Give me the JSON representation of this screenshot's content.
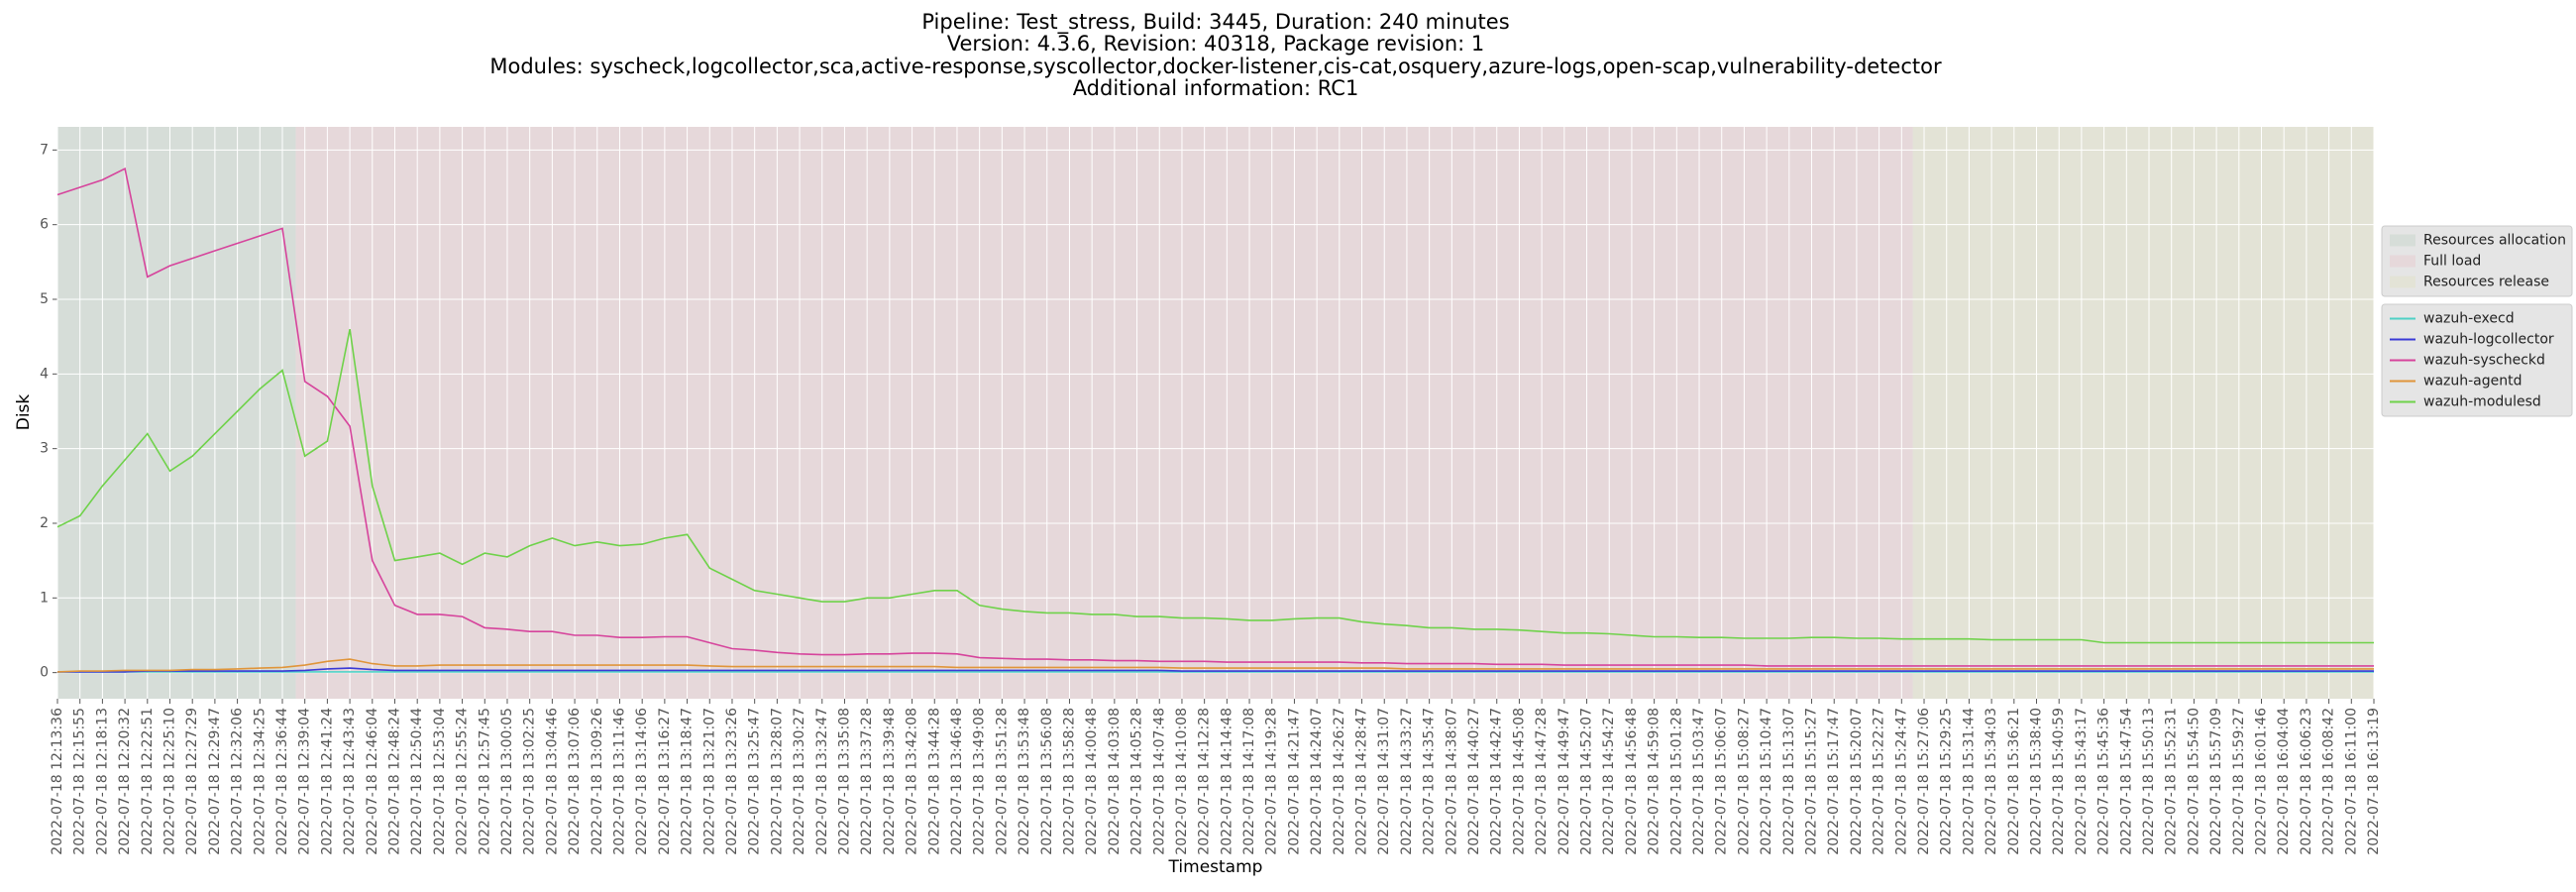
{
  "chart_data": {
    "type": "line",
    "title": [
      "Pipeline: Test_stress, Build: 3445, Duration: 240 minutes",
      "Version: 4.3.6, Revision: 40318, Package revision: 1",
      "Modules: syscheck,logcollector,sca,active-response,syscollector,docker-listener,cis-cat,osquery,azure-logs,open-scap,vulnerability-detector",
      "Additional information: RC1"
    ],
    "x_label": "Timestamp",
    "y_label": "Disk",
    "categories": [
      "2022-07-18 12:13:36",
      "2022-07-18 12:15:55",
      "2022-07-18 12:18:13",
      "2022-07-18 12:20:32",
      "2022-07-18 12:22:51",
      "2022-07-18 12:25:10",
      "2022-07-18 12:27:29",
      "2022-07-18 12:29:47",
      "2022-07-18 12:32:06",
      "2022-07-18 12:34:25",
      "2022-07-18 12:36:44",
      "2022-07-18 12:39:04",
      "2022-07-18 12:41:24",
      "2022-07-18 12:43:43",
      "2022-07-18 12:46:04",
      "2022-07-18 12:48:24",
      "2022-07-18 12:50:44",
      "2022-07-18 12:53:04",
      "2022-07-18 12:55:24",
      "2022-07-18 12:57:45",
      "2022-07-18 13:00:05",
      "2022-07-18 13:02:25",
      "2022-07-18 13:04:46",
      "2022-07-18 13:07:06",
      "2022-07-18 13:09:26",
      "2022-07-18 13:11:46",
      "2022-07-18 13:14:06",
      "2022-07-18 13:16:27",
      "2022-07-18 13:18:47",
      "2022-07-18 13:21:07",
      "2022-07-18 13:23:26",
      "2022-07-18 13:25:47",
      "2022-07-18 13:28:07",
      "2022-07-18 13:30:27",
      "2022-07-18 13:32:47",
      "2022-07-18 13:35:08",
      "2022-07-18 13:37:28",
      "2022-07-18 13:39:48",
      "2022-07-18 13:42:08",
      "2022-07-18 13:44:28",
      "2022-07-18 13:46:48",
      "2022-07-18 13:49:08",
      "2022-07-18 13:51:28",
      "2022-07-18 13:53:48",
      "2022-07-18 13:56:08",
      "2022-07-18 13:58:28",
      "2022-07-18 14:00:48",
      "2022-07-18 14:03:08",
      "2022-07-18 14:05:28",
      "2022-07-18 14:07:48",
      "2022-07-18 14:10:08",
      "2022-07-18 14:12:28",
      "2022-07-18 14:14:48",
      "2022-07-18 14:17:08",
      "2022-07-18 14:19:28",
      "2022-07-18 14:21:47",
      "2022-07-18 14:24:07",
      "2022-07-18 14:26:27",
      "2022-07-18 14:28:47",
      "2022-07-18 14:31:07",
      "2022-07-18 14:33:27",
      "2022-07-18 14:35:47",
      "2022-07-18 14:38:07",
      "2022-07-18 14:40:27",
      "2022-07-18 14:42:47",
      "2022-07-18 14:45:08",
      "2022-07-18 14:47:28",
      "2022-07-18 14:49:47",
      "2022-07-18 14:52:07",
      "2022-07-18 14:54:27",
      "2022-07-18 14:56:48",
      "2022-07-18 14:59:08",
      "2022-07-18 15:01:28",
      "2022-07-18 15:03:47",
      "2022-07-18 15:06:07",
      "2022-07-18 15:08:27",
      "2022-07-18 15:10:47",
      "2022-07-18 15:13:07",
      "2022-07-18 15:15:27",
      "2022-07-18 15:17:47",
      "2022-07-18 15:20:07",
      "2022-07-18 15:22:27",
      "2022-07-18 15:24:47",
      "2022-07-18 15:27:06",
      "2022-07-18 15:29:25",
      "2022-07-18 15:31:44",
      "2022-07-18 15:34:03",
      "2022-07-18 15:36:21",
      "2022-07-18 15:38:40",
      "2022-07-18 15:40:59",
      "2022-07-18 15:43:17",
      "2022-07-18 15:45:36",
      "2022-07-18 15:47:54",
      "2022-07-18 15:50:13",
      "2022-07-18 15:52:31",
      "2022-07-18 15:54:50",
      "2022-07-18 15:57:09",
      "2022-07-18 15:59:27",
      "2022-07-18 16:01:46",
      "2022-07-18 16:04:04",
      "2022-07-18 16:06:23",
      "2022-07-18 16:08:42",
      "2022-07-18 16:11:00",
      "2022-07-18 16:13:19"
    ],
    "phases": [
      {
        "name": "Resources allocation",
        "color": "#d6ddd8",
        "start": 0,
        "end": 10.6
      },
      {
        "name": "Full load",
        "color": "#e6d8da",
        "start": 10.6,
        "end": 82.5
      },
      {
        "name": "Resources release",
        "color": "#e3e3d6",
        "start": 82.5,
        "end": 103
      }
    ],
    "series": [
      {
        "name": "wazuh-execd",
        "color": "#4fd1c5",
        "values": [
          0.01,
          0.01,
          0.01,
          0.01,
          0.01,
          0.01,
          0.01,
          0.01,
          0.01,
          0.01,
          0.01,
          0.01,
          0.01,
          0.01,
          0.01,
          0.01,
          0.01,
          0.01,
          0.01,
          0.01,
          0.01,
          0.01,
          0.01,
          0.01,
          0.01,
          0.01,
          0.01,
          0.01,
          0.01,
          0.01,
          0.01,
          0.01,
          0.01,
          0.01,
          0.01,
          0.01,
          0.01,
          0.01,
          0.01,
          0.01,
          0.01,
          0.01,
          0.01,
          0.01,
          0.01,
          0.01,
          0.01,
          0.01,
          0.01,
          0.01,
          0.01,
          0.01,
          0.01,
          0.01,
          0.01,
          0.01,
          0.01,
          0.01,
          0.01,
          0.01,
          0.01,
          0.01,
          0.01,
          0.01,
          0.01,
          0.01,
          0.01,
          0.01,
          0.01,
          0.01,
          0.01,
          0.01,
          0.01,
          0.01,
          0.01,
          0.01,
          0.01,
          0.01,
          0.01,
          0.01,
          0.01,
          0.01,
          0.01,
          0.01,
          0.01,
          0.01,
          0.01,
          0.01,
          0.01,
          0.01,
          0.01,
          0.01,
          0.01,
          0.01,
          0.01,
          0.01,
          0.01,
          0.01,
          0.01,
          0.01,
          0.01,
          0.01,
          0.01,
          0.01
        ]
      },
      {
        "name": "wazuh-logcollector",
        "color": "#3a3ad6",
        "values": [
          0.01,
          0.01,
          0.01,
          0.01,
          0.02,
          0.02,
          0.02,
          0.02,
          0.02,
          0.02,
          0.02,
          0.03,
          0.05,
          0.06,
          0.04,
          0.03,
          0.03,
          0.03,
          0.03,
          0.03,
          0.03,
          0.03,
          0.03,
          0.03,
          0.03,
          0.03,
          0.03,
          0.03,
          0.03,
          0.03,
          0.03,
          0.03,
          0.03,
          0.03,
          0.03,
          0.03,
          0.03,
          0.03,
          0.03,
          0.03,
          0.03,
          0.03,
          0.03,
          0.03,
          0.03,
          0.03,
          0.03,
          0.03,
          0.03,
          0.03,
          0.02,
          0.02,
          0.02,
          0.02,
          0.02,
          0.02,
          0.02,
          0.02,
          0.02,
          0.02,
          0.02,
          0.02,
          0.02,
          0.02,
          0.02,
          0.02,
          0.02,
          0.02,
          0.02,
          0.02,
          0.02,
          0.02,
          0.02,
          0.02,
          0.02,
          0.02,
          0.02,
          0.02,
          0.02,
          0.02,
          0.02,
          0.02,
          0.02,
          0.02,
          0.02,
          0.02,
          0.02,
          0.02,
          0.02,
          0.02,
          0.02,
          0.02,
          0.02,
          0.02,
          0.02,
          0.02,
          0.02,
          0.02,
          0.02,
          0.02,
          0.02,
          0.02,
          0.02,
          0.02
        ]
      },
      {
        "name": "wazuh-syscheckd",
        "color": "#d6449c",
        "values": [
          6.4,
          6.5,
          6.6,
          6.75,
          5.3,
          5.45,
          5.55,
          5.65,
          5.75,
          5.85,
          5.95,
          3.9,
          3.7,
          3.3,
          1.5,
          0.9,
          0.78,
          0.78,
          0.75,
          0.6,
          0.58,
          0.55,
          0.55,
          0.5,
          0.5,
          0.47,
          0.47,
          0.48,
          0.48,
          0.4,
          0.32,
          0.3,
          0.27,
          0.25,
          0.24,
          0.24,
          0.25,
          0.25,
          0.26,
          0.26,
          0.25,
          0.2,
          0.19,
          0.18,
          0.18,
          0.17,
          0.17,
          0.16,
          0.16,
          0.15,
          0.15,
          0.15,
          0.14,
          0.14,
          0.14,
          0.14,
          0.14,
          0.14,
          0.13,
          0.13,
          0.12,
          0.12,
          0.12,
          0.12,
          0.11,
          0.11,
          0.11,
          0.1,
          0.1,
          0.1,
          0.1,
          0.1,
          0.1,
          0.1,
          0.1,
          0.1,
          0.09,
          0.09,
          0.09,
          0.09,
          0.09,
          0.09,
          0.09,
          0.09,
          0.09,
          0.09,
          0.09,
          0.09,
          0.09,
          0.09,
          0.09,
          0.09,
          0.09,
          0.09,
          0.09,
          0.09,
          0.09,
          0.09,
          0.09,
          0.09,
          0.09,
          0.09,
          0.09,
          0.09
        ]
      },
      {
        "name": "wazuh-agentd",
        "color": "#e0953a",
        "values": [
          0.01,
          0.02,
          0.02,
          0.03,
          0.03,
          0.03,
          0.04,
          0.04,
          0.05,
          0.06,
          0.07,
          0.1,
          0.15,
          0.18,
          0.12,
          0.09,
          0.09,
          0.1,
          0.1,
          0.1,
          0.1,
          0.1,
          0.1,
          0.1,
          0.1,
          0.1,
          0.1,
          0.1,
          0.1,
          0.09,
          0.08,
          0.08,
          0.08,
          0.08,
          0.08,
          0.08,
          0.08,
          0.08,
          0.08,
          0.08,
          0.07,
          0.07,
          0.07,
          0.07,
          0.07,
          0.07,
          0.07,
          0.07,
          0.07,
          0.07,
          0.06,
          0.06,
          0.06,
          0.06,
          0.06,
          0.06,
          0.06,
          0.06,
          0.06,
          0.06,
          0.05,
          0.05,
          0.05,
          0.05,
          0.05,
          0.05,
          0.05,
          0.05,
          0.05,
          0.05,
          0.05,
          0.05,
          0.05,
          0.05,
          0.05,
          0.05,
          0.05,
          0.05,
          0.05,
          0.05,
          0.05,
          0.05,
          0.05,
          0.05,
          0.05,
          0.05,
          0.05,
          0.05,
          0.05,
          0.05,
          0.05,
          0.05,
          0.05,
          0.05,
          0.05,
          0.05,
          0.05,
          0.05,
          0.05,
          0.05,
          0.05,
          0.05,
          0.05,
          0.05
        ]
      },
      {
        "name": "wazuh-modulesd",
        "color": "#6fd24a",
        "values": [
          1.95,
          2.1,
          2.5,
          2.85,
          3.2,
          2.7,
          2.9,
          3.2,
          3.5,
          3.8,
          4.05,
          2.9,
          3.1,
          4.6,
          2.5,
          1.5,
          1.55,
          1.6,
          1.45,
          1.6,
          1.55,
          1.7,
          1.8,
          1.7,
          1.75,
          1.7,
          1.72,
          1.8,
          1.85,
          1.4,
          1.25,
          1.1,
          1.05,
          1.0,
          0.95,
          0.95,
          1.0,
          1.0,
          1.05,
          1.1,
          1.1,
          0.9,
          0.85,
          0.82,
          0.8,
          0.8,
          0.78,
          0.78,
          0.75,
          0.75,
          0.73,
          0.73,
          0.72,
          0.7,
          0.7,
          0.72,
          0.73,
          0.73,
          0.68,
          0.65,
          0.63,
          0.6,
          0.6,
          0.58,
          0.58,
          0.57,
          0.55,
          0.53,
          0.53,
          0.52,
          0.5,
          0.48,
          0.48,
          0.47,
          0.47,
          0.46,
          0.46,
          0.46,
          0.47,
          0.47,
          0.46,
          0.46,
          0.45,
          0.45,
          0.45,
          0.45,
          0.44,
          0.44,
          0.44,
          0.44,
          0.44,
          0.4,
          0.4,
          0.4,
          0.4,
          0.4,
          0.4,
          0.4,
          0.4,
          0.4,
          0.4,
          0.4,
          0.4,
          0.4
        ]
      }
    ],
    "ylim": [
      -0.35,
      7.31
    ],
    "yticks": [
      0,
      1,
      2,
      3,
      4,
      5,
      6,
      7
    ],
    "grid": true,
    "legend": "right"
  }
}
